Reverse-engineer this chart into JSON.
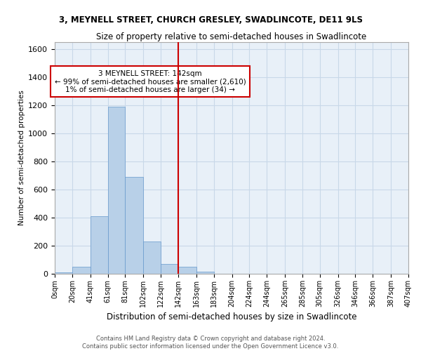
{
  "title": "3, MEYNELL STREET, CHURCH GRESLEY, SWADLINCOTE, DE11 9LS",
  "subtitle": "Size of property relative to semi-detached houses in Swadlincote",
  "xlabel": "Distribution of semi-detached houses by size in Swadlincote",
  "ylabel": "Number of semi-detached properties",
  "footer1": "Contains HM Land Registry data © Crown copyright and database right 2024.",
  "footer2": "Contains public sector information licensed under the Open Government Licence v3.0.",
  "bar_color": "#b8d0e8",
  "bar_edge_color": "#6699cc",
  "grid_color": "#c8d8e8",
  "background_color": "#e8f0f8",
  "annotation_box_color": "#cc0000",
  "vline_color": "#cc0000",
  "bin_edges": [
    0,
    20,
    41,
    61,
    81,
    102,
    122,
    142,
    163,
    183,
    204,
    224,
    244,
    265,
    285,
    305,
    326,
    346,
    366,
    387,
    407
  ],
  "bin_labels": [
    "0sqm",
    "20sqm",
    "41sqm",
    "61sqm",
    "81sqm",
    "102sqm",
    "122sqm",
    "142sqm",
    "163sqm",
    "183sqm",
    "204sqm",
    "224sqm",
    "244sqm",
    "265sqm",
    "285sqm",
    "305sqm",
    "326sqm",
    "346sqm",
    "366sqm",
    "387sqm",
    "407sqm"
  ],
  "bar_heights": [
    10,
    50,
    410,
    1190,
    690,
    230,
    70,
    50,
    15,
    0,
    0,
    0,
    0,
    0,
    0,
    0,
    0,
    0,
    0,
    0
  ],
  "ylim": [
    0,
    1650
  ],
  "yticks": [
    0,
    200,
    400,
    600,
    800,
    1000,
    1200,
    1400,
    1600
  ],
  "property_label": "3 MEYNELL STREET: 142sqm",
  "ann_line1": "← 99% of semi-detached houses are smaller (2,610)",
  "ann_line2": "1% of semi-detached houses are larger (34) →",
  "vline_x": 142
}
